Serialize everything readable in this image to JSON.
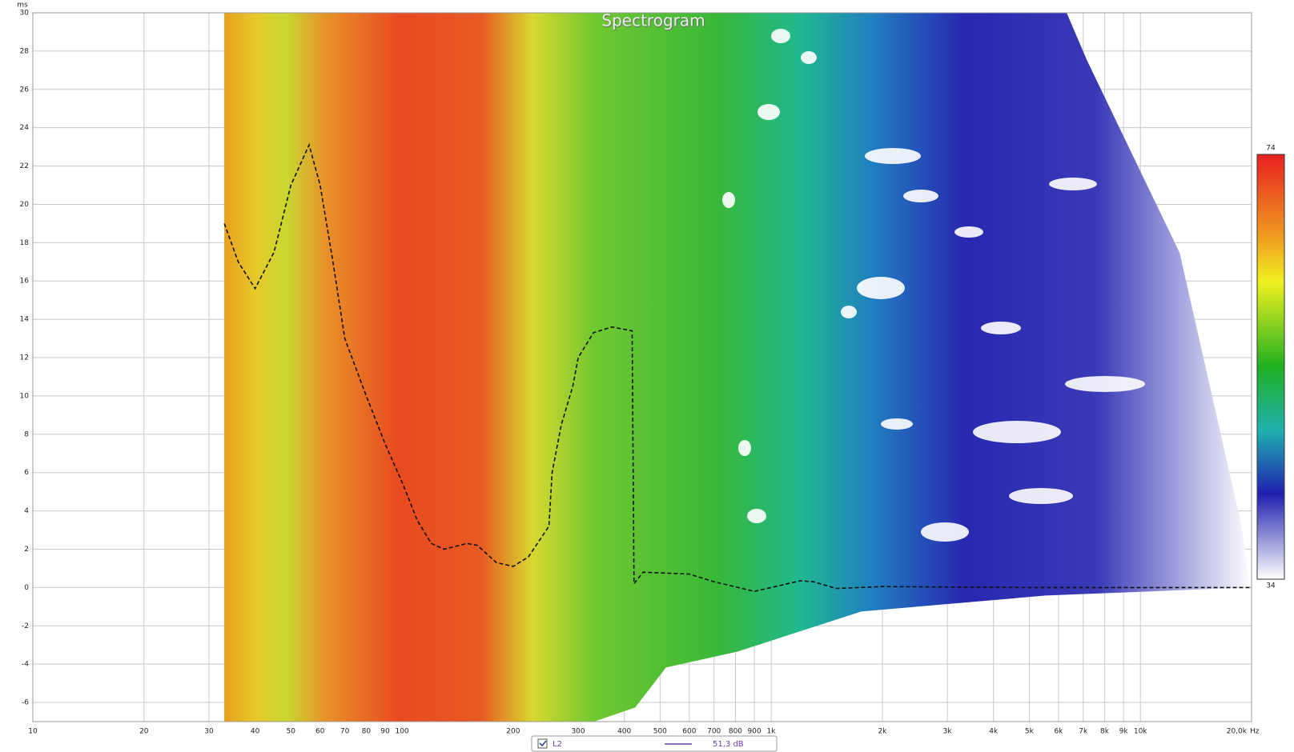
{
  "chart_data": {
    "type": "spectrogram",
    "title": "Spectrogram",
    "ylabel": "ms",
    "xunit": "Hz",
    "xscale": "log",
    "xlim": [
      10,
      20000
    ],
    "ylim": [
      -7,
      30
    ],
    "xticks": [
      10,
      20,
      30,
      40,
      50,
      60,
      70,
      80,
      90,
      100,
      200,
      300,
      400,
      500,
      600,
      700,
      800,
      900,
      {
        "value": 1000,
        "label": "1k"
      },
      {
        "value": 2000,
        "label": "2k"
      },
      {
        "value": 3000,
        "label": "3k"
      },
      {
        "value": 4000,
        "label": "4k"
      },
      {
        "value": 5000,
        "label": "5k"
      },
      {
        "value": 6000,
        "label": "6k"
      },
      {
        "value": 7000,
        "label": "7k"
      },
      {
        "value": 8000,
        "label": "8k"
      },
      {
        "value": 9000,
        "label": "9k"
      },
      {
        "value": 10000,
        "label": "10k"
      },
      {
        "value": 20000,
        "label": "20,0k"
      }
    ],
    "yticks": [
      -6,
      -4,
      -2,
      0,
      2,
      4,
      6,
      8,
      10,
      12,
      14,
      16,
      18,
      20,
      22,
      24,
      26,
      28,
      30
    ],
    "grid": true,
    "series": [
      {
        "color": "#111111",
        "dashed": true,
        "x": [
          33,
          36,
          40,
          45,
          50,
          56,
          60,
          65,
          70,
          80,
          90,
          100,
          110,
          120,
          130,
          150,
          160,
          180,
          200,
          220,
          250,
          255,
          270,
          290,
          300,
          330,
          370,
          420,
          425,
          450,
          600,
          700,
          900,
          1000,
          1200,
          1300,
          1500,
          2000,
          5000,
          20000
        ],
        "values": [
          19,
          17,
          15.6,
          17.5,
          21,
          23.1,
          21,
          17,
          13,
          10,
          7.5,
          5.5,
          3.5,
          2.3,
          2,
          2.3,
          2.2,
          1.3,
          1.1,
          1.6,
          3.2,
          6,
          8.5,
          10.5,
          12,
          13.3,
          13.6,
          13.4,
          0.2,
          0.8,
          0.7,
          0.3,
          -0.2,
          0,
          0.35,
          0.3,
          -0.05,
          0.05,
          0,
          0
        ]
      }
    ],
    "colorbar": {
      "range": [
        34,
        74
      ],
      "ticks": [
        34,
        74
      ]
    },
    "legend": {
      "name": "L2",
      "color": "#6a3fb5",
      "value_label": "51,3 dB",
      "checked": true
    }
  }
}
